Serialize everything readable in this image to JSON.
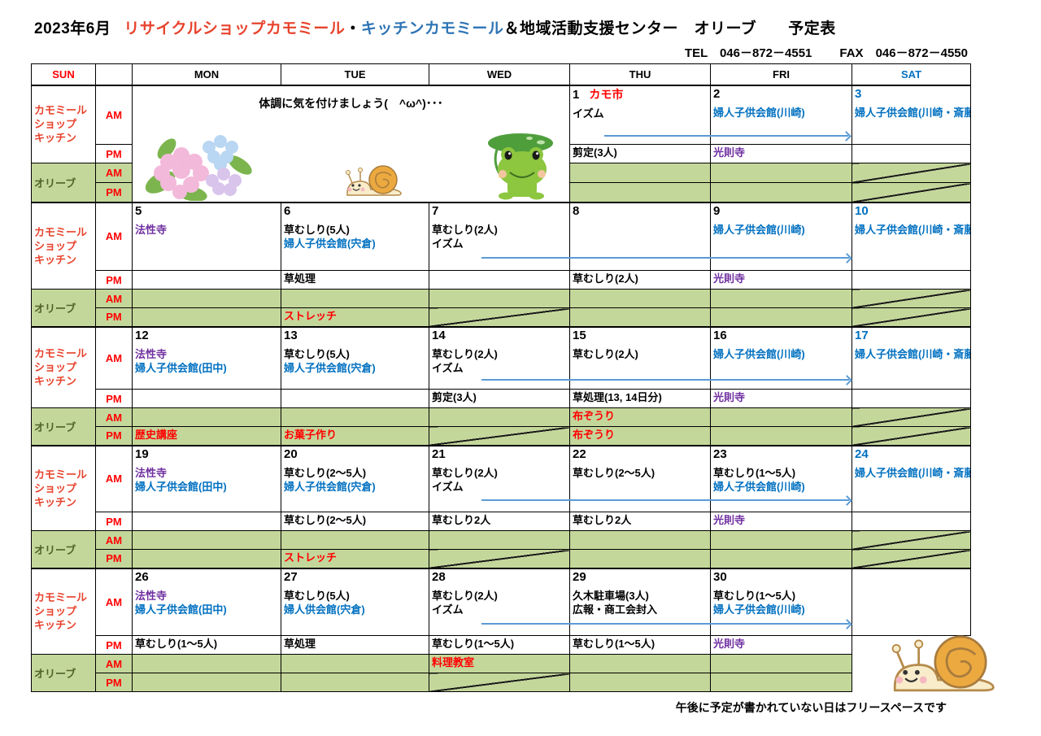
{
  "colors": {
    "red": "#ff0000",
    "blue": "#0070c0",
    "purple": "#7030a0",
    "olive_bg": "#c4d79b",
    "olive_text": "#4f6228",
    "section_red": "#e8432d",
    "title_red": "#e8432d",
    "title_blue": "#2e74b5",
    "arrow_blue": "#5b9bd5"
  },
  "title": {
    "date": "2023年6月",
    "shop": "リサイクルショップカモミール",
    "dot": "・",
    "kitchen": "キッチンカモミール",
    "rest": "＆地域活動支援センター　オリーブ　　予定表"
  },
  "contact": {
    "tel": "TEL　046－872－4551",
    "fax": "FAX　046－872－4550"
  },
  "day_headers": [
    {
      "label": "SUN",
      "color": "#ff0000"
    },
    {
      "label": "",
      "color": "#000000"
    },
    {
      "label": "MON",
      "color": "#000000"
    },
    {
      "label": "TUE",
      "color": "#000000"
    },
    {
      "label": "WED",
      "color": "#000000"
    },
    {
      "label": "THU",
      "color": "#000000"
    },
    {
      "label": "FRI",
      "color": "#000000"
    },
    {
      "label": "SAT",
      "color": "#0070c0"
    }
  ],
  "labels": {
    "shop": [
      "カモミール",
      "ショップ",
      "キッチン"
    ],
    "olive": "オリーブ",
    "am": "AM",
    "pm": "PM"
  },
  "illustrations": {
    "week1": [
      "hydrangea",
      "snail",
      "frog"
    ],
    "bottom_right": "snail"
  },
  "footer_note": "午後に予定が書かれていない日はフリースペースです",
  "weeks": [
    {
      "message": "体調に気を付けましょう(　^ω^)･･･",
      "days": [
        {
          "date": "1",
          "dc": "k",
          "tag": [
            "カモ市",
            "r"
          ],
          "am": [
            [
              "イズム",
              "k"
            ]
          ],
          "pm": [
            [
              "剪定(3人)",
              "k"
            ]
          ],
          "oam": [],
          "opm": []
        },
        {
          "date": "2",
          "dc": "k",
          "am": [
            [
              "婦人子供会館(川崎)",
              "b"
            ]
          ],
          "pm": [
            [
              "光則寺",
              "p"
            ]
          ],
          "oam": [],
          "opm": []
        },
        {
          "date": "3",
          "dc": "b",
          "am": [
            [
              "婦人子供会館(川崎・斎藤)",
              "b"
            ]
          ],
          "pm": [],
          "oam": [],
          "opm": [],
          "xoam": true,
          "xopm": true
        }
      ]
    },
    {
      "days": [
        {
          "date": "5",
          "dc": "k",
          "am": [
            [
              "法性寺",
              "p"
            ]
          ],
          "pm": [],
          "oam": [],
          "opm": []
        },
        {
          "date": "6",
          "dc": "k",
          "am": [
            [
              "草むしり(5人)",
              "k"
            ],
            [
              "婦人子供会館(宍倉)",
              "b"
            ]
          ],
          "pm": [
            [
              "草処理",
              "k"
            ]
          ],
          "oam": [],
          "opm": [
            [
              "ストレッチ",
              "r"
            ]
          ]
        },
        {
          "date": "7",
          "dc": "k",
          "am": [
            [
              "草むしり(2人)",
              "k"
            ],
            [
              "イズム",
              "k"
            ]
          ],
          "pm": [],
          "oam": [],
          "opm": [],
          "xopm": true
        },
        {
          "date": "8",
          "dc": "k",
          "am": [],
          "pm": [
            [
              "草むしり(2人)",
              "k"
            ]
          ],
          "oam": [],
          "opm": []
        },
        {
          "date": "9",
          "dc": "k",
          "am": [
            [
              "婦人子供会館(川崎)",
              "b"
            ]
          ],
          "pm": [
            [
              "光則寺",
              "p"
            ]
          ],
          "oam": [],
          "opm": []
        },
        {
          "date": "10",
          "dc": "b",
          "am": [
            [
              "婦人子供会館(川崎・斎藤)",
              "b"
            ]
          ],
          "pm": [],
          "oam": [],
          "opm": [],
          "xoam": true,
          "xopm": true
        }
      ]
    },
    {
      "days": [
        {
          "date": "12",
          "dc": "k",
          "am": [
            [
              "法性寺",
              "p"
            ],
            [
              "婦人子供会館(田中)",
              "b"
            ]
          ],
          "pm": [],
          "oam": [],
          "opm": [
            [
              "歴史講座",
              "r"
            ]
          ]
        },
        {
          "date": "13",
          "dc": "k",
          "am": [
            [
              "草むしり(5人)",
              "k"
            ],
            [
              "婦人子供会館(宍倉)",
              "b"
            ]
          ],
          "pm": [],
          "oam": [],
          "opm": [
            [
              "お菓子作り",
              "r"
            ]
          ]
        },
        {
          "date": "14",
          "dc": "k",
          "am": [
            [
              "草むしり(2人)",
              "k"
            ],
            [
              "イズム",
              "k"
            ]
          ],
          "pm": [
            [
              "剪定(3人)",
              "k"
            ]
          ],
          "oam": [],
          "opm": [],
          "xopm": true
        },
        {
          "date": "15",
          "dc": "k",
          "am": [
            [
              "草むしり(2人)",
              "k"
            ]
          ],
          "pm": [
            [
              "草処理(13, 14日分)",
              "k"
            ]
          ],
          "oam": [
            [
              "布ぞうり",
              "r"
            ]
          ],
          "opm": [
            [
              "布ぞうり",
              "r"
            ]
          ]
        },
        {
          "date": "16",
          "dc": "k",
          "am": [
            [
              "婦人子供会館(川崎)",
              "b"
            ]
          ],
          "pm": [
            [
              "光則寺",
              "p"
            ]
          ],
          "oam": [],
          "opm": []
        },
        {
          "date": "17",
          "dc": "b",
          "am": [
            [
              "婦人子供会館(川崎・斎藤)",
              "b"
            ]
          ],
          "pm": [],
          "oam": [],
          "opm": [],
          "xoam": true,
          "xopm": true
        }
      ]
    },
    {
      "days": [
        {
          "date": "19",
          "dc": "k",
          "am": [
            [
              "法性寺",
              "p"
            ],
            [
              "婦人子供会館(田中)",
              "b"
            ]
          ],
          "pm": [],
          "oam": [],
          "opm": []
        },
        {
          "date": "20",
          "dc": "k",
          "am": [
            [
              "草むしり(2～5人)",
              "k"
            ],
            [
              "婦人子供会館(宍倉)",
              "b"
            ]
          ],
          "pm": [
            [
              "草むしり(2～5人)",
              "k"
            ]
          ],
          "oam": [],
          "opm": [
            [
              "ストレッチ",
              "r"
            ]
          ]
        },
        {
          "date": "21",
          "dc": "k",
          "am": [
            [
              "草むしり(2人)",
              "k"
            ],
            [
              "イズム",
              "k"
            ]
          ],
          "pm": [
            [
              "草むしり2人",
              "k"
            ]
          ],
          "oam": [],
          "opm": [],
          "xopm": true
        },
        {
          "date": "22",
          "dc": "k",
          "am": [
            [
              "草むしり(2～5人)",
              "k"
            ]
          ],
          "pm": [
            [
              "草むしり2人",
              "k"
            ]
          ],
          "oam": [],
          "opm": []
        },
        {
          "date": "23",
          "dc": "k",
          "am": [
            [
              "草むしり(1～5人)",
              "k"
            ],
            [
              "婦人子供会館(川崎)",
              "b"
            ]
          ],
          "pm": [
            [
              "光則寺",
              "p"
            ]
          ],
          "oam": [],
          "opm": []
        },
        {
          "date": "24",
          "dc": "b",
          "am": [
            [
              "婦人子供会館(川崎・斎藤)",
              "b"
            ]
          ],
          "pm": [],
          "oam": [],
          "opm": [],
          "xoam": true,
          "xopm": true
        }
      ]
    },
    {
      "days": [
        {
          "date": "26",
          "dc": "k",
          "am": [
            [
              "法性寺",
              "p"
            ],
            [
              "婦人子供会館(田中)",
              "b"
            ]
          ],
          "pm": [
            [
              "草むしり(1～5人)",
              "k"
            ]
          ],
          "oam": [],
          "opm": []
        },
        {
          "date": "27",
          "dc": "k",
          "am": [
            [
              "草むしり(5人)",
              "k"
            ],
            [
              "婦人供会館(宍倉)",
              "b"
            ]
          ],
          "pm": [
            [
              "草処理",
              "k"
            ]
          ],
          "oam": [],
          "opm": []
        },
        {
          "date": "28",
          "dc": "k",
          "am": [
            [
              "草むしり(2人)",
              "k"
            ],
            [
              "イズム",
              "k"
            ]
          ],
          "pm": [
            [
              "草むしり(1～5人)",
              "k"
            ]
          ],
          "oam": [
            [
              "料理教室",
              "r"
            ]
          ],
          "opm": [],
          "xopm": true
        },
        {
          "date": "29",
          "dc": "k",
          "am": [
            [
              "久木駐車場(3人)",
              "k"
            ],
            [
              "広報・商工会封入",
              "k"
            ]
          ],
          "pm": [
            [
              "草むしり(1～5人)",
              "k"
            ]
          ],
          "oam": [],
          "opm": []
        },
        {
          "date": "30",
          "dc": "k",
          "am": [
            [
              "草むしり(1～5人)",
              "k"
            ],
            [
              "婦人子供会館(川崎)",
              "b"
            ]
          ],
          "pm": [
            [
              "光則寺",
              "p"
            ]
          ],
          "oam": [],
          "opm": []
        },
        {
          "open": true
        }
      ]
    }
  ]
}
